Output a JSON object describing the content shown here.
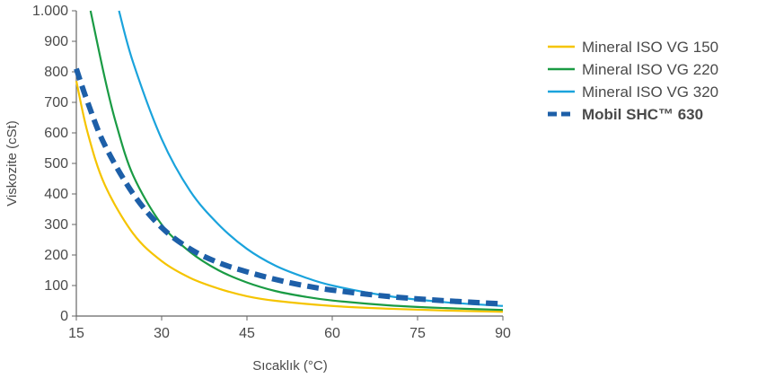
{
  "chart_data": {
    "type": "line",
    "title": "",
    "xlabel": "Sıcaklık (°C)",
    "ylabel": "Viskozite (cSt)",
    "xlim": [
      15,
      90
    ],
    "ylim": [
      0,
      1000
    ],
    "x_ticks": [
      15,
      30,
      45,
      60,
      75,
      90
    ],
    "x_tick_labels": [
      "15",
      "30",
      "45",
      "60",
      "75",
      "90"
    ],
    "y_ticks": [
      0,
      100,
      200,
      300,
      400,
      500,
      600,
      700,
      800,
      900,
      1000
    ],
    "y_tick_labels": [
      "0",
      "100",
      "200",
      "300",
      "400",
      "500",
      "600",
      "700",
      "800",
      "900",
      "1.000"
    ],
    "grid": false,
    "legend_position": "right",
    "series": [
      {
        "name": "Mineral ISO VG 150",
        "color": "#f5c400",
        "dashed": false,
        "bold": false,
        "points": [
          [
            15,
            770
          ],
          [
            17,
            600
          ],
          [
            20,
            430
          ],
          [
            25,
            270
          ],
          [
            30,
            180
          ],
          [
            35,
            125
          ],
          [
            40,
            90
          ],
          [
            45,
            65
          ],
          [
            50,
            50
          ],
          [
            60,
            33
          ],
          [
            70,
            24
          ],
          [
            80,
            18
          ],
          [
            90,
            14
          ]
        ]
      },
      {
        "name": "Mineral ISO VG 220",
        "color": "#1a9b44",
        "dashed": false,
        "bold": false,
        "points": [
          [
            17.5,
            1000
          ],
          [
            20,
            780
          ],
          [
            22,
            630
          ],
          [
            25,
            460
          ],
          [
            30,
            300
          ],
          [
            35,
            210
          ],
          [
            40,
            150
          ],
          [
            45,
            110
          ],
          [
            50,
            82
          ],
          [
            55,
            64
          ],
          [
            60,
            51
          ],
          [
            70,
            35
          ],
          [
            80,
            26
          ],
          [
            90,
            20
          ]
        ]
      },
      {
        "name": "Mineral ISO VG 320",
        "color": "#1aa3dc",
        "dashed": false,
        "bold": false,
        "points": [
          [
            22.5,
            1000
          ],
          [
            25,
            830
          ],
          [
            30,
            580
          ],
          [
            35,
            410
          ],
          [
            40,
            300
          ],
          [
            45,
            220
          ],
          [
            50,
            165
          ],
          [
            55,
            128
          ],
          [
            60,
            100
          ],
          [
            70,
            65
          ],
          [
            80,
            45
          ],
          [
            90,
            33
          ]
        ]
      },
      {
        "name": "Mobil SHC™ 630",
        "color": "#1d5fa8",
        "dashed": true,
        "bold": true,
        "points": [
          [
            15,
            810
          ],
          [
            17,
            700
          ],
          [
            20,
            560
          ],
          [
            25,
            400
          ],
          [
            30,
            290
          ],
          [
            35,
            220
          ],
          [
            40,
            175
          ],
          [
            45,
            145
          ],
          [
            50,
            120
          ],
          [
            55,
            100
          ],
          [
            60,
            85
          ],
          [
            70,
            64
          ],
          [
            80,
            50
          ],
          [
            90,
            40
          ]
        ]
      }
    ]
  }
}
